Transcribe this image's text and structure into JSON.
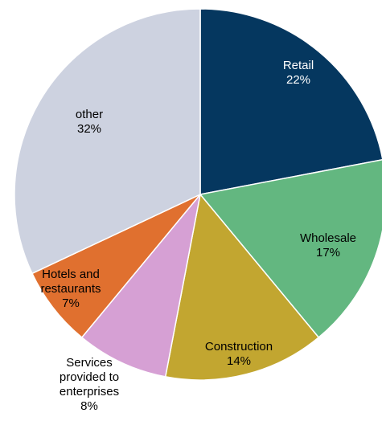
{
  "chart_data": {
    "type": "pie",
    "start_angle_deg": 0,
    "direction": "clockwise",
    "label_color_default": "#000000",
    "slices": [
      {
        "label": "Retail",
        "value": 22,
        "value_label": "22%",
        "color": "#05375f",
        "label_color": "#ffffff"
      },
      {
        "label": "Wholesale",
        "value": 17,
        "value_label": "17%",
        "color": "#63b780",
        "label_color": "#000000"
      },
      {
        "label": "Construction",
        "value": 14,
        "value_label": "14%",
        "color": "#c2a630",
        "label_color": "#000000"
      },
      {
        "label": "Services provided to enterprises",
        "value": 8,
        "value_label": "8%",
        "color": "#d6a0d4",
        "label_color": "#000000"
      },
      {
        "label": "Hotels and restaurants",
        "value": 7,
        "value_label": "7%",
        "color": "#e0702f",
        "label_color": "#000000"
      },
      {
        "label": "other",
        "value": 32,
        "value_label": "32%",
        "color": "#cdd2e0",
        "label_color": "#000000"
      }
    ]
  }
}
